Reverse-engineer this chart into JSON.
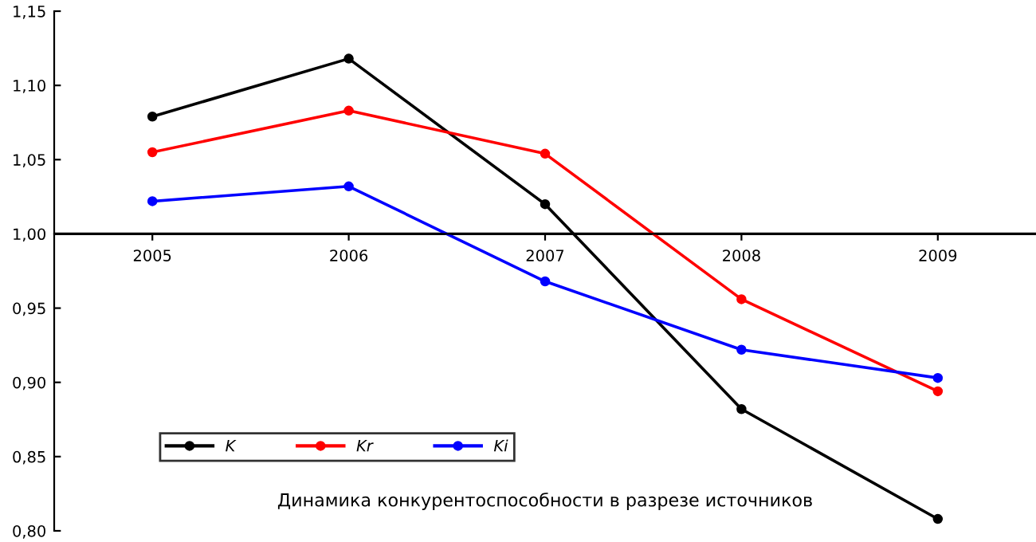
{
  "chart_data": {
    "type": "line",
    "title": "Динамика конкурентоспособности в разрезе источников",
    "categories": [
      "2005",
      "2006",
      "2007",
      "2008",
      "2009"
    ],
    "series": [
      {
        "name": "K",
        "color": "#000000",
        "values": [
          1.079,
          1.118,
          1.02,
          0.882,
          0.808
        ]
      },
      {
        "name": "Kr",
        "color": "#ff0000",
        "values": [
          1.055,
          1.083,
          1.054,
          0.956,
          0.894
        ]
      },
      {
        "name": "Ki",
        "color": "#0000ff",
        "values": [
          1.022,
          1.032,
          0.968,
          0.922,
          0.903
        ]
      }
    ],
    "ylim": [
      0.8,
      1.15
    ],
    "yticks": [
      {
        "value": 0.8,
        "label": "0,80"
      },
      {
        "value": 0.85,
        "label": "0,85"
      },
      {
        "value": 0.9,
        "label": "0,90"
      },
      {
        "value": 0.95,
        "label": "0,95"
      },
      {
        "value": 1.0,
        "label": "1,00"
      },
      {
        "value": 1.05,
        "label": "1,05"
      },
      {
        "value": 1.1,
        "label": "1,10"
      },
      {
        "value": 1.15,
        "label": "1,15"
      }
    ],
    "ref_lines": [
      {
        "axis": "y",
        "value": 1.0,
        "color": "#000000"
      }
    ],
    "legend": "bottom left",
    "marker": "circle",
    "line_style": "solid",
    "grid": false
  }
}
